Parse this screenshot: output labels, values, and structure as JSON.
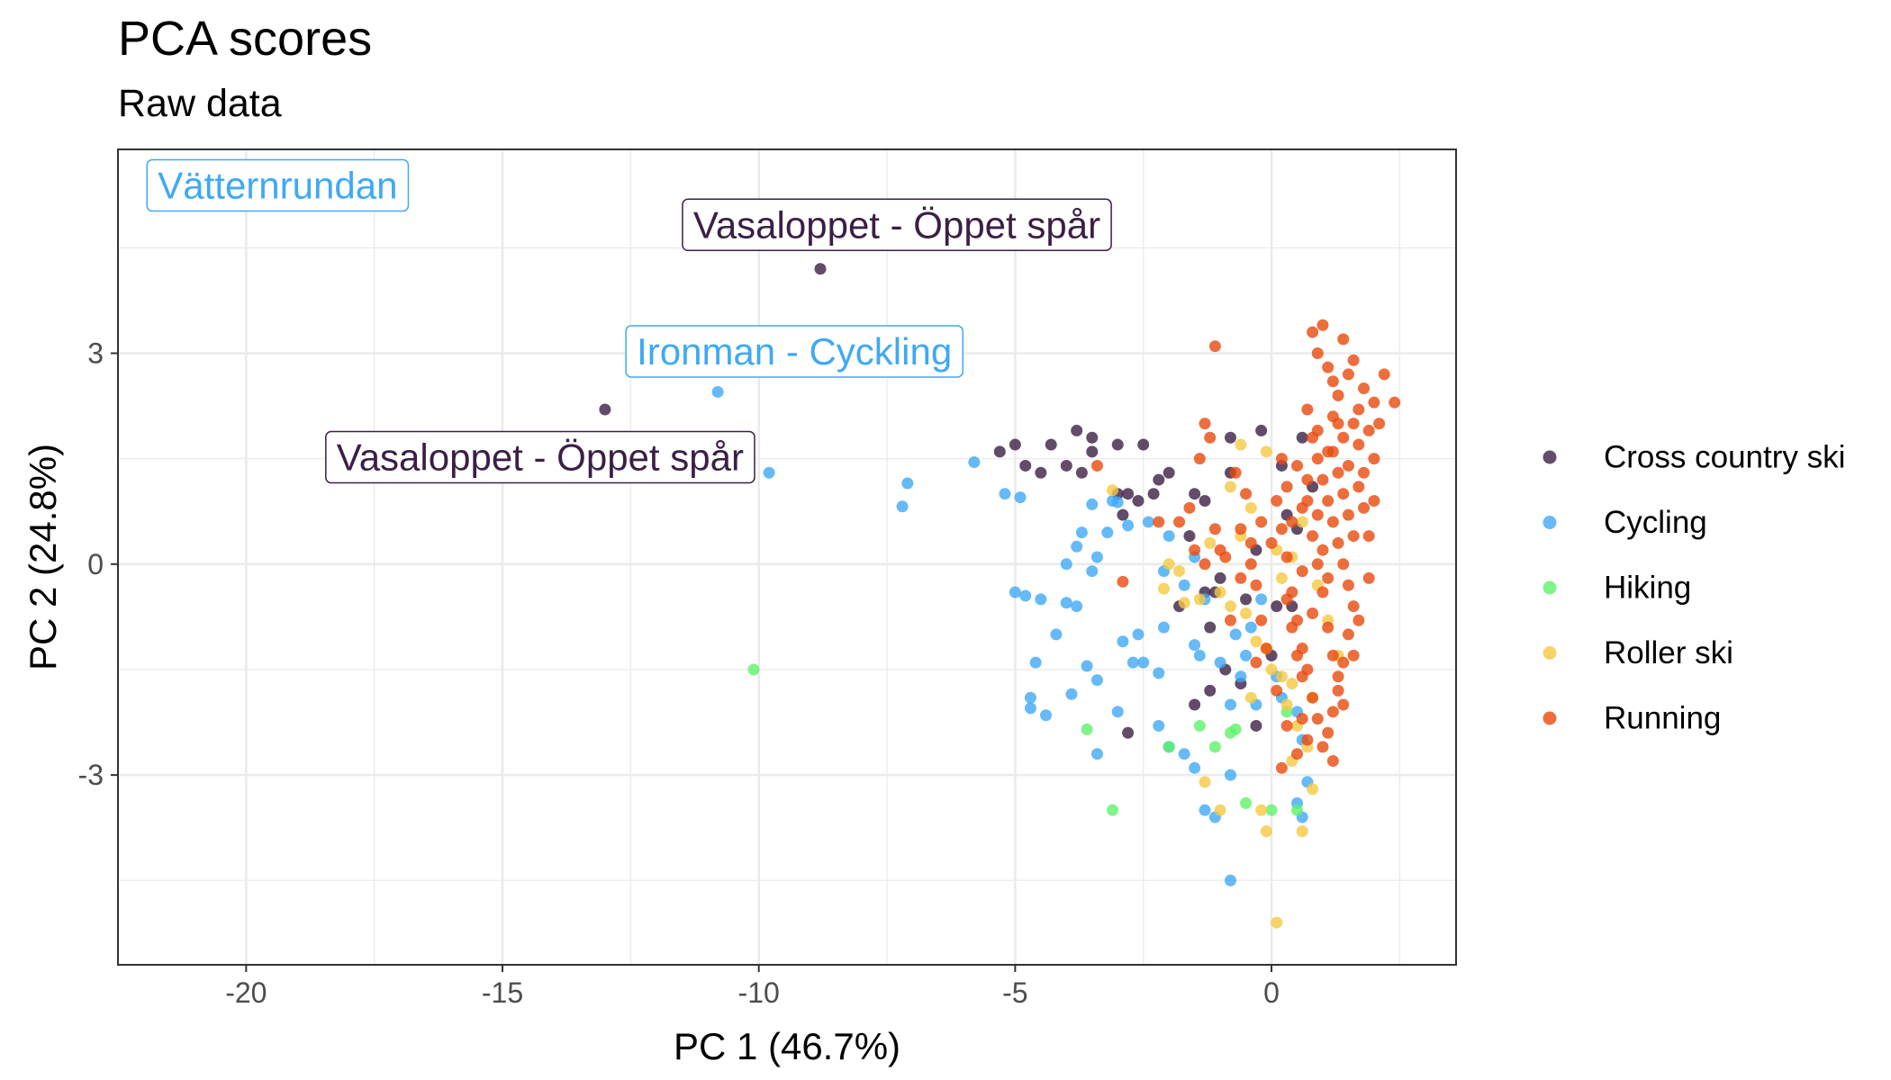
{
  "chart_data": {
    "type": "scatter",
    "title": "PCA scores",
    "subtitle": "Raw data",
    "xlabel": "PC 1 (46.7%)",
    "ylabel": "PC 2 (24.8%)",
    "xlim": [
      -22.5,
      3.6
    ],
    "ylim": [
      -5.7,
      5.9
    ],
    "xticks": [
      -20,
      -15,
      -10,
      -5,
      0
    ],
    "yticks": [
      -3,
      0,
      3
    ],
    "grid": true,
    "legend_position": "right",
    "series": [
      {
        "name": "Cross country ski",
        "color": "#3b1f45",
        "points": [
          [
            -8.8,
            4.2
          ],
          [
            -13.0,
            2.2
          ],
          [
            -5.3,
            1.6
          ],
          [
            -5.0,
            1.7
          ],
          [
            -4.3,
            1.7
          ],
          [
            -3.8,
            1.9
          ],
          [
            -3.5,
            1.8
          ],
          [
            -3.5,
            1.6
          ],
          [
            -3.0,
            1.7
          ],
          [
            -2.5,
            1.7
          ],
          [
            -2.0,
            1.3
          ],
          [
            -2.2,
            1.2
          ],
          [
            -4.8,
            1.4
          ],
          [
            -4.5,
            1.3
          ],
          [
            -4.0,
            1.4
          ],
          [
            -3.7,
            1.3
          ],
          [
            -3.0,
            1.0
          ],
          [
            -2.8,
            1.0
          ],
          [
            -2.6,
            0.9
          ],
          [
            -2.3,
            1.0
          ],
          [
            -1.5,
            1.0
          ],
          [
            -1.3,
            0.9
          ],
          [
            -1.6,
            0.4
          ],
          [
            -0.8,
            1.8
          ],
          [
            -0.8,
            1.3
          ],
          [
            -0.2,
            1.9
          ],
          [
            0.2,
            1.4
          ],
          [
            -1.0,
            -0.2
          ],
          [
            -1.1,
            -0.4
          ],
          [
            -1.2,
            -0.9
          ],
          [
            -0.9,
            -1.5
          ],
          [
            -1.2,
            -1.8
          ],
          [
            -1.5,
            -2.0
          ],
          [
            -0.6,
            -1.7
          ],
          [
            -0.3,
            -2.3
          ],
          [
            -2.8,
            -2.4
          ],
          [
            -0.5,
            -0.5
          ],
          [
            0.0,
            -1.3
          ],
          [
            0.1,
            -0.6
          ],
          [
            -0.3,
            0.2
          ],
          [
            -1.8,
            -0.6
          ],
          [
            0.3,
            0.7
          ],
          [
            0.6,
            1.8
          ],
          [
            0.5,
            0.5
          ],
          [
            0.8,
            1.1
          ],
          [
            -2.9,
            0.7
          ],
          [
            -1.3,
            -0.4
          ],
          [
            0.4,
            -0.6
          ]
        ]
      },
      {
        "name": "Cycling",
        "color": "#3fa9f5",
        "points": [
          [
            -21.6,
            5.4
          ],
          [
            -10.8,
            2.45
          ],
          [
            -9.8,
            1.3
          ],
          [
            -7.1,
            1.15
          ],
          [
            -7.2,
            0.82
          ],
          [
            -5.8,
            1.45
          ],
          [
            -5.2,
            1.0
          ],
          [
            -4.9,
            0.95
          ],
          [
            -3.1,
            0.9
          ],
          [
            -3.0,
            0.88
          ],
          [
            -3.5,
            0.85
          ],
          [
            -2.8,
            0.55
          ],
          [
            -3.2,
            0.45
          ],
          [
            -3.8,
            0.25
          ],
          [
            -3.4,
            0.1
          ],
          [
            -3.5,
            -0.1
          ],
          [
            -4.0,
            0.0
          ],
          [
            -3.7,
            0.45
          ],
          [
            -2.4,
            0.6
          ],
          [
            -2.0,
            0.4
          ],
          [
            -2.1,
            -0.1
          ],
          [
            -1.5,
            0.1
          ],
          [
            -5.0,
            -0.4
          ],
          [
            -4.8,
            -0.45
          ],
          [
            -4.5,
            -0.5
          ],
          [
            -4.0,
            -0.55
          ],
          [
            -3.8,
            -0.6
          ],
          [
            -4.2,
            -1.0
          ],
          [
            -4.6,
            -1.4
          ],
          [
            -4.7,
            -1.9
          ],
          [
            -4.7,
            -2.05
          ],
          [
            -4.4,
            -2.15
          ],
          [
            -3.9,
            -1.85
          ],
          [
            -3.4,
            -1.65
          ],
          [
            -3.6,
            -1.45
          ],
          [
            -2.6,
            -1.0
          ],
          [
            -2.9,
            -1.1
          ],
          [
            -2.7,
            -1.4
          ],
          [
            -2.2,
            -1.55
          ],
          [
            -2.5,
            -1.4
          ],
          [
            -2.1,
            -0.9
          ],
          [
            -1.5,
            -1.15
          ],
          [
            -1.4,
            -1.3
          ],
          [
            -1.0,
            -1.4
          ],
          [
            -0.7,
            -1.0
          ],
          [
            -0.5,
            -1.3
          ],
          [
            -0.6,
            -1.6
          ],
          [
            -3.0,
            -2.1
          ],
          [
            -2.2,
            -2.3
          ],
          [
            -2.0,
            -2.6
          ],
          [
            -1.7,
            -2.7
          ],
          [
            -1.5,
            -2.9
          ],
          [
            -0.8,
            -3.0
          ],
          [
            -1.3,
            -3.5
          ],
          [
            -1.1,
            -3.6
          ],
          [
            -0.8,
            -4.5
          ],
          [
            -3.4,
            -2.7
          ],
          [
            -0.4,
            -0.9
          ],
          [
            -0.2,
            -0.5
          ],
          [
            0.1,
            -1.6
          ],
          [
            0.2,
            -1.9
          ],
          [
            0.5,
            -2.1
          ],
          [
            0.6,
            -2.5
          ],
          [
            0.7,
            -3.1
          ],
          [
            0.5,
            -3.4
          ],
          [
            0.6,
            -3.6
          ],
          [
            -1.3,
            -0.5
          ],
          [
            -1.7,
            -0.3
          ],
          [
            -0.3,
            -2.0
          ],
          [
            -0.8,
            -2.0
          ]
        ]
      },
      {
        "name": "Hiking",
        "color": "#5ef26a",
        "points": [
          [
            -10.1,
            -1.5
          ],
          [
            -3.6,
            -2.35
          ],
          [
            -3.1,
            -3.5
          ],
          [
            -2.0,
            -2.6
          ],
          [
            -1.4,
            -2.3
          ],
          [
            -1.1,
            -2.6
          ],
          [
            -0.7,
            -2.35
          ],
          [
            -0.8,
            -2.4
          ],
          [
            -0.5,
            -3.4
          ],
          [
            0.0,
            -3.5
          ],
          [
            0.5,
            -3.5
          ],
          [
            0.3,
            -2.1
          ]
        ]
      },
      {
        "name": "Roller ski",
        "color": "#f5c842",
        "points": [
          [
            -3.1,
            1.05
          ],
          [
            -0.6,
            1.7
          ],
          [
            -0.1,
            1.6
          ],
          [
            -2.0,
            0.0
          ],
          [
            -1.8,
            -0.1
          ],
          [
            -2.1,
            -0.35
          ],
          [
            -1.7,
            -0.55
          ],
          [
            -1.4,
            -0.5
          ],
          [
            -1.0,
            -0.4
          ],
          [
            -0.8,
            -0.6
          ],
          [
            -0.5,
            -0.7
          ],
          [
            -0.3,
            -1.1
          ],
          [
            -0.1,
            -1.2
          ],
          [
            0.0,
            -1.5
          ],
          [
            0.2,
            -1.6
          ],
          [
            0.4,
            -1.7
          ],
          [
            0.3,
            -2.0
          ],
          [
            0.5,
            -2.3
          ],
          [
            0.4,
            -2.8
          ],
          [
            0.7,
            -2.6
          ],
          [
            0.8,
            -3.2
          ],
          [
            0.6,
            -3.8
          ],
          [
            -0.1,
            -3.8
          ],
          [
            -0.2,
            -3.5
          ],
          [
            -1.3,
            -3.1
          ],
          [
            -1.0,
            -3.5
          ],
          [
            0.1,
            -5.1
          ],
          [
            0.2,
            -0.2
          ],
          [
            -0.4,
            0.8
          ],
          [
            -0.6,
            0.4
          ],
          [
            -0.8,
            1.1
          ],
          [
            -1.2,
            0.3
          ],
          [
            0.1,
            0.2
          ],
          [
            0.4,
            0.1
          ],
          [
            0.6,
            0.6
          ],
          [
            0.9,
            -0.3
          ],
          [
            1.1,
            -0.8
          ],
          [
            1.3,
            -1.3
          ],
          [
            0.8,
            -1.9
          ],
          [
            -0.4,
            -1.9
          ]
        ]
      },
      {
        "name": "Running",
        "color": "#e84a0c",
        "points": [
          [
            -1.1,
            3.1
          ],
          [
            -3.4,
            1.4
          ],
          [
            -2.9,
            -0.25
          ],
          [
            -2.2,
            0.6
          ],
          [
            -1.8,
            0.6
          ],
          [
            -1.3,
            2.0
          ],
          [
            -1.2,
            1.8
          ],
          [
            -1.4,
            1.5
          ],
          [
            -1.6,
            0.8
          ],
          [
            -1.5,
            0.2
          ],
          [
            -1.3,
            0.0
          ],
          [
            -1.1,
            0.5
          ],
          [
            -0.9,
            0.1
          ],
          [
            -0.7,
            1.3
          ],
          [
            -0.5,
            1.0
          ],
          [
            -0.6,
            0.5
          ],
          [
            -0.4,
            0.0
          ],
          [
            -0.3,
            -0.3
          ],
          [
            -0.2,
            -0.8
          ],
          [
            -0.1,
            -1.2
          ],
          [
            0.0,
            0.3
          ],
          [
            0.1,
            0.9
          ],
          [
            0.2,
            1.5
          ],
          [
            0.3,
            1.1
          ],
          [
            0.3,
            -0.5
          ],
          [
            0.4,
            -0.9
          ],
          [
            0.5,
            -1.3
          ],
          [
            0.6,
            -1.6
          ],
          [
            0.6,
            -2.2
          ],
          [
            0.7,
            -2.5
          ],
          [
            0.5,
            -2.7
          ],
          [
            0.2,
            -2.9
          ],
          [
            0.8,
            3.3
          ],
          [
            0.9,
            3.0
          ],
          [
            1.0,
            3.4
          ],
          [
            1.1,
            2.8
          ],
          [
            1.2,
            2.6
          ],
          [
            1.3,
            2.4
          ],
          [
            1.4,
            3.2
          ],
          [
            1.5,
            2.7
          ],
          [
            1.6,
            2.9
          ],
          [
            1.7,
            2.2
          ],
          [
            1.8,
            2.5
          ],
          [
            1.9,
            1.9
          ],
          [
            2.0,
            2.3
          ],
          [
            2.1,
            2.0
          ],
          [
            2.2,
            2.7
          ],
          [
            2.4,
            2.3
          ],
          [
            0.7,
            2.2
          ],
          [
            0.8,
            1.8
          ],
          [
            0.9,
            1.5
          ],
          [
            1.0,
            1.2
          ],
          [
            1.1,
            0.9
          ],
          [
            1.2,
            0.6
          ],
          [
            1.3,
            0.3
          ],
          [
            1.4,
            0.0
          ],
          [
            1.5,
            -0.3
          ],
          [
            1.6,
            -0.6
          ],
          [
            1.5,
            -1.0
          ],
          [
            1.4,
            -1.4
          ],
          [
            1.3,
            -1.8
          ],
          [
            1.2,
            -2.1
          ],
          [
            1.1,
            -2.4
          ],
          [
            1.0,
            -2.6
          ],
          [
            0.9,
            -2.2
          ],
          [
            0.8,
            -1.9
          ],
          [
            0.7,
            -1.5
          ],
          [
            0.6,
            -1.2
          ],
          [
            0.5,
            -0.8
          ],
          [
            0.4,
            -0.4
          ],
          [
            0.3,
            0.1
          ],
          [
            0.2,
            0.5
          ],
          [
            0.6,
            0.8
          ],
          [
            0.7,
            1.2
          ],
          [
            0.8,
            0.4
          ],
          [
            0.9,
            0.0
          ],
          [
            1.0,
            -0.4
          ],
          [
            1.1,
            -0.9
          ],
          [
            1.2,
            -1.3
          ],
          [
            1.3,
            -1.6
          ],
          [
            0.9,
            0.7
          ],
          [
            1.0,
            0.2
          ],
          [
            1.1,
            -0.2
          ],
          [
            1.2,
            1.6
          ],
          [
            1.3,
            1.3
          ],
          [
            1.4,
            1.0
          ],
          [
            1.5,
            0.7
          ],
          [
            1.6,
            0.4
          ],
          [
            1.7,
            1.1
          ],
          [
            1.8,
            0.8
          ],
          [
            1.9,
            0.4
          ],
          [
            2.0,
            1.5
          ],
          [
            1.7,
            1.7
          ],
          [
            1.6,
            2.0
          ],
          [
            1.4,
            1.8
          ],
          [
            1.2,
            2.1
          ],
          [
            0.8,
            -0.7
          ],
          [
            0.6,
            -0.1
          ],
          [
            0.4,
            0.6
          ],
          [
            0.5,
            1.4
          ],
          [
            0.7,
            0.9
          ],
          [
            0.9,
            1.9
          ],
          [
            1.1,
            1.6
          ],
          [
            1.3,
            2.0
          ],
          [
            -0.2,
            0.6
          ],
          [
            -0.4,
            0.3
          ],
          [
            -0.6,
            -0.2
          ],
          [
            -0.8,
            -0.8
          ],
          [
            -1.0,
            0.2
          ],
          [
            -0.3,
            -1.4
          ],
          [
            0.1,
            -1.8
          ],
          [
            0.3,
            -2.3
          ],
          [
            1.5,
            1.4
          ],
          [
            1.8,
            1.3
          ],
          [
            2.0,
            0.9
          ],
          [
            1.9,
            -0.2
          ],
          [
            1.7,
            -0.8
          ],
          [
            1.6,
            -1.3
          ],
          [
            1.4,
            -2.0
          ],
          [
            1.2,
            -2.8
          ]
        ]
      }
    ],
    "annotations": [
      {
        "text": "Vätternrundan",
        "series": "Cycling",
        "x": -21.6,
        "y": 5.4
      },
      {
        "text": "Vasaloppet - Öppet spår",
        "series": "Cross country ski",
        "x": -8.8,
        "y": 4.2
      },
      {
        "text": "Ironman - Cyckling",
        "series": "Cycling",
        "x": -10.8,
        "y": 2.45
      },
      {
        "text": "Vasaloppet - Öppet spår",
        "series": "Cross country ski",
        "x": -13.0,
        "y": 2.2
      }
    ]
  }
}
